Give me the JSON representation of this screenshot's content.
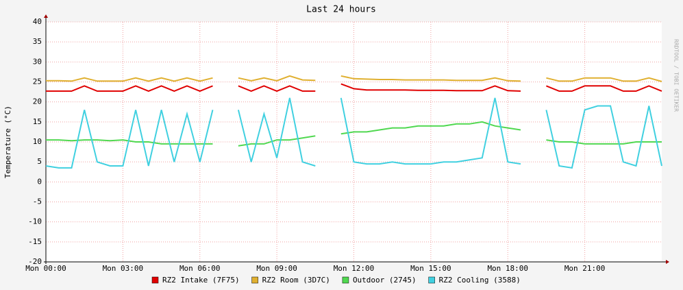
{
  "chart_data": {
    "type": "line",
    "title": "Last 24 hours",
    "y_label": "Temperature (°C)",
    "side_note": "RRDTOOL / TOBI OETIKER",
    "x": [
      0,
      0.5,
      1,
      1.5,
      2,
      2.5,
      3,
      3.5,
      4,
      4.5,
      5,
      5.5,
      6,
      6.5,
      7,
      7.5,
      8,
      8.5,
      9,
      9.5,
      10,
      10.5,
      11,
      11.5,
      12,
      12.5,
      13,
      13.5,
      14,
      14.5,
      15,
      15.5,
      16,
      16.5,
      17,
      17.5,
      18,
      18.5,
      19,
      19.5,
      20,
      20.5,
      21,
      21.5,
      22,
      22.5,
      23,
      23.5,
      24
    ],
    "xlim": [
      0,
      24
    ],
    "xticks": [
      {
        "value": 0,
        "label": "Mon 00:00"
      },
      {
        "value": 3,
        "label": "Mon 03:00"
      },
      {
        "value": 6,
        "label": "Mon 06:00"
      },
      {
        "value": 9,
        "label": "Mon 09:00"
      },
      {
        "value": 12,
        "label": "Mon 12:00"
      },
      {
        "value": 15,
        "label": "Mon 15:00"
      },
      {
        "value": 18,
        "label": "Mon 18:00"
      },
      {
        "value": 21,
        "label": "Mon 21:00"
      }
    ],
    "ylim": [
      -20,
      40
    ],
    "yticks": [
      -20,
      -15,
      -10,
      -5,
      0,
      5,
      10,
      15,
      20,
      25,
      30,
      35,
      40
    ],
    "grid": true,
    "legend": "bottom",
    "series": [
      {
        "name": "RZ2 Intake (7F75)",
        "color": "#e00000",
        "values": [
          22.7,
          22.7,
          22.7,
          24,
          22.7,
          22.7,
          22.7,
          24,
          22.7,
          24,
          22.7,
          24,
          22.7,
          24,
          null,
          24,
          22.7,
          24,
          22.7,
          24,
          22.7,
          22.7,
          null,
          24.5,
          23.3,
          23,
          23,
          23,
          23,
          22.9,
          22.9,
          22.9,
          22.8,
          22.8,
          22.8,
          24,
          22.8,
          22.7,
          null,
          24,
          22.7,
          22.7,
          24,
          24,
          24,
          22.7,
          22.7,
          24,
          22.7
        ]
      },
      {
        "name": "RZ2 Room (3D7C)",
        "color": "#e0b030",
        "values": [
          25.3,
          25.3,
          25.2,
          26,
          25.2,
          25.2,
          25.2,
          26,
          25.2,
          26,
          25.2,
          26,
          25.2,
          26,
          null,
          26,
          25.3,
          26,
          25.3,
          26.5,
          25.5,
          25.4,
          null,
          26.5,
          25.8,
          25.7,
          25.6,
          25.6,
          25.5,
          25.5,
          25.5,
          25.5,
          25.4,
          25.4,
          25.4,
          26,
          25.3,
          25.2,
          null,
          26,
          25.2,
          25.2,
          26,
          26,
          26,
          25.2,
          25.2,
          26,
          25.1
        ]
      },
      {
        "name": "Outdoor (2745)",
        "color": "#50d850",
        "values": [
          10.5,
          10.5,
          10.3,
          10.5,
          10.5,
          10.3,
          10.5,
          10,
          10,
          9.5,
          9.5,
          9.5,
          9.5,
          9.5,
          null,
          9,
          9.5,
          9.5,
          10.5,
          10.5,
          11,
          11.5,
          null,
          12,
          12.5,
          12.5,
          13,
          13.5,
          13.5,
          14,
          14,
          14,
          14.5,
          14.5,
          15,
          14,
          13.5,
          13,
          null,
          10.5,
          10,
          10,
          9.5,
          9.5,
          9.5,
          9.5,
          10,
          10,
          10
        ]
      },
      {
        "name": "RZ2 Cooling (3588)",
        "color": "#40d0e0",
        "values": [
          4,
          3.5,
          3.5,
          18,
          5,
          4,
          4,
          18,
          4,
          18,
          5,
          17,
          5,
          18,
          null,
          18,
          5,
          17,
          6,
          21,
          5,
          4,
          null,
          21,
          5,
          4.5,
          4.5,
          5,
          4.5,
          4.5,
          4.5,
          5,
          5,
          5.5,
          6,
          21,
          5,
          4.5,
          null,
          18,
          4,
          3.5,
          18,
          19,
          19,
          5,
          4,
          19,
          4
        ]
      }
    ]
  }
}
